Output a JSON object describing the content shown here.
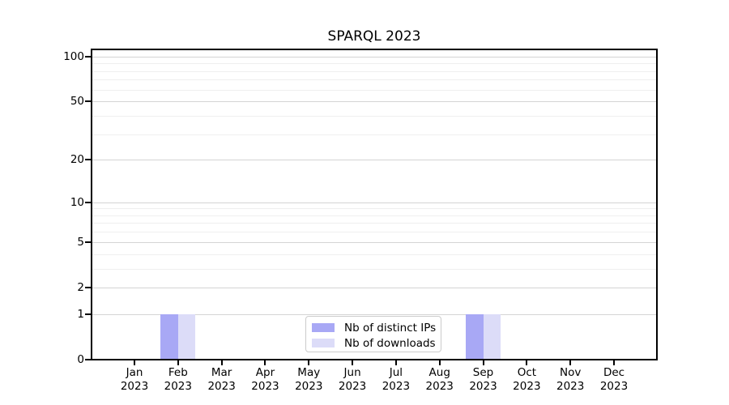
{
  "chart_data": {
    "type": "bar",
    "title": "SPARQL 2023",
    "categories": [
      "Jan 2023",
      "Feb 2023",
      "Mar 2023",
      "Apr 2023",
      "May 2023",
      "Jun 2023",
      "Jul 2023",
      "Aug 2023",
      "Sep 2023",
      "Oct 2023",
      "Nov 2023",
      "Dec 2023"
    ],
    "series": [
      {
        "name": "Nb of distinct IPs",
        "color": "#a8a8f5",
        "values": [
          0,
          1,
          0,
          0,
          0,
          0,
          0,
          0,
          1,
          0,
          0,
          0
        ]
      },
      {
        "name": "Nb of downloads",
        "color": "#dcdcf8",
        "values": [
          0,
          1,
          0,
          0,
          0,
          0,
          0,
          0,
          1,
          0,
          0,
          0
        ]
      }
    ],
    "xlabel": "",
    "ylabel": "",
    "y_scale": "log1p",
    "ylim": [
      0,
      113
    ],
    "y_major_ticks": [
      0,
      1,
      2,
      5,
      10,
      20,
      50,
      100
    ],
    "y_tick_labels": [
      "0",
      "1",
      "2",
      "5",
      "10",
      "20",
      "50",
      "100"
    ],
    "y_minor_gridlines": [
      3,
      4,
      6,
      7,
      8,
      9,
      30,
      40,
      60,
      70,
      80,
      90
    ],
    "grid": "horizontal-only",
    "legend_position": "bottom-center"
  },
  "styles": {
    "major_grid_color": "#d4d4d4",
    "minor_grid_color": "#efefef",
    "axis_color": "#000000",
    "text_color": "#000000",
    "legend_border_color": "#cccccc",
    "legend_background": "#ffffff"
  }
}
